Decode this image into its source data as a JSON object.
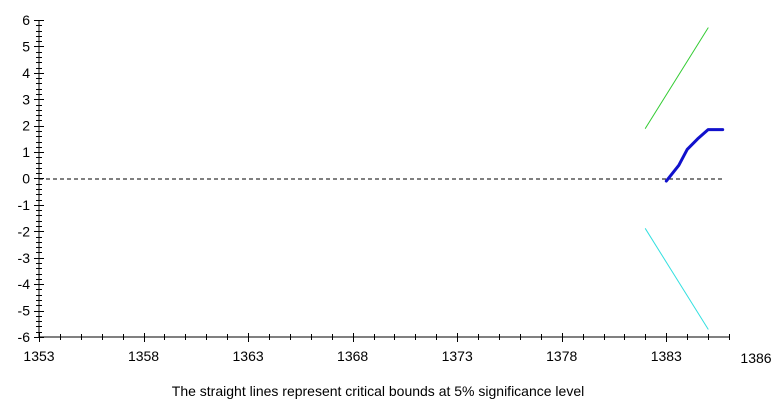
{
  "chart_data": {
    "type": "line",
    "caption": "The straight lines represent critical bounds at 5% significance level",
    "xlim": [
      1353,
      1386
    ],
    "ylim": [
      -6,
      6
    ],
    "x_ticks": [
      1353,
      1358,
      1363,
      1368,
      1373,
      1378,
      1383,
      1386
    ],
    "y_ticks": [
      6,
      5,
      4,
      3,
      2,
      1,
      0,
      -1,
      -2,
      -3,
      -4,
      -5,
      -6
    ],
    "reference_line": {
      "y": 0,
      "style": "dashed",
      "color": "#000000"
    },
    "series": [
      {
        "color": "#33cc33",
        "role": "upper critical bound",
        "x": [
          1382,
          1385
        ],
        "y": [
          1.9,
          5.7
        ]
      },
      {
        "color": "#1111cc",
        "role": "statistic",
        "x": [
          1383,
          1383.6,
          1384,
          1384.5,
          1385,
          1385.7
        ],
        "y": [
          -0.1,
          0.5,
          1.1,
          1.5,
          1.85,
          1.85
        ]
      },
      {
        "color": "#33e0e0",
        "role": "lower critical bound",
        "x": [
          1382,
          1385
        ],
        "y": [
          -1.9,
          -5.7
        ]
      }
    ]
  }
}
